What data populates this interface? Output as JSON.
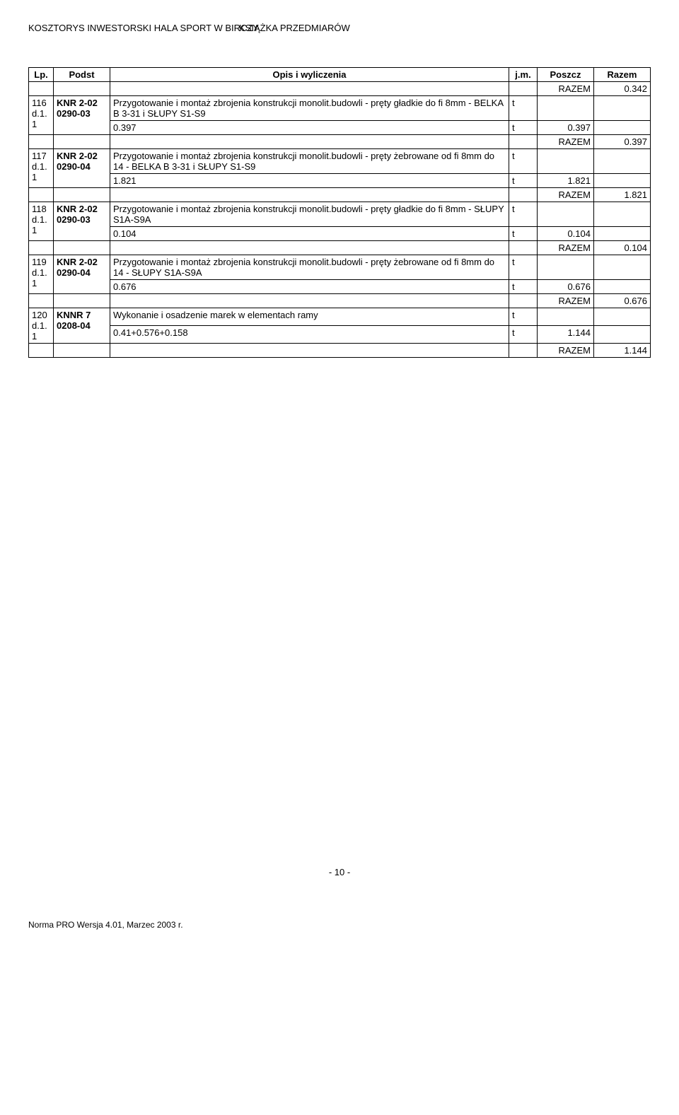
{
  "header": {
    "left": "KOSZTORYS INWESTORSKI HALA SPORT W BIRCZY",
    "right": "KSIĄŻKA PRZEDMIARÓW"
  },
  "columns": {
    "lp": "Lp.",
    "podst": "Podst",
    "opis": "Opis i wyliczenia",
    "jm": "j.m.",
    "poszcz": "Poszcz",
    "razem": "Razem"
  },
  "razem_label": "RAZEM",
  "top_razem": "0.342",
  "items": [
    {
      "lp": "116",
      "sub": "d.1. 1",
      "podst": "KNR 2-02 0290-03",
      "opis": "Przygotowanie i montaż zbrojenia konstrukcji monolit.budowli - pręty gładkie do fi 8mm - BELKA B 3-31 i SŁUPY S1-S9",
      "jm": "t",
      "calc_opis": "0.397",
      "calc_jm": "t",
      "calc_poszcz": "0.397",
      "razem": "0.397"
    },
    {
      "lp": "117",
      "sub": "d.1. 1",
      "podst": "KNR 2-02 0290-04",
      "opis": "Przygotowanie i montaż zbrojenia konstrukcji monolit.budowli - pręty żebrowane od fi 8mm do 14 - BELKA B 3-31 i SŁUPY S1-S9",
      "jm": "t",
      "calc_opis": "1.821",
      "calc_jm": "t",
      "calc_poszcz": "1.821",
      "razem": "1.821"
    },
    {
      "lp": "118",
      "sub": "d.1. 1",
      "podst": "KNR 2-02 0290-03",
      "opis": "Przygotowanie i montaż zbrojenia konstrukcji monolit.budowli - pręty gładkie do fi 8mm - SŁUPY S1A-S9A",
      "jm": "t",
      "calc_opis": "0.104",
      "calc_jm": "t",
      "calc_poszcz": "0.104",
      "razem": "0.104"
    },
    {
      "lp": "119",
      "sub": "d.1. 1",
      "podst": "KNR 2-02 0290-04",
      "opis": "Przygotowanie i montaż zbrojenia konstrukcji monolit.budowli - pręty żebrowane od fi 8mm do 14 - SŁUPY S1A-S9A",
      "jm": "t",
      "calc_opis": "0.676",
      "calc_jm": "t",
      "calc_poszcz": "0.676",
      "razem": "0.676"
    },
    {
      "lp": "120",
      "sub": "d.1. 1",
      "podst": "KNNR 7 0208-04",
      "opis": "Wykonanie i osadzenie marek w elementach ramy",
      "jm": "t",
      "calc_opis": "0.41+0.576+0.158",
      "calc_jm": "t",
      "calc_poszcz": "1.144",
      "razem": "1.144"
    }
  ],
  "footer": {
    "page": "- 10 -",
    "version": "Norma PRO Wersja 4.01, Marzec 2003 r."
  }
}
